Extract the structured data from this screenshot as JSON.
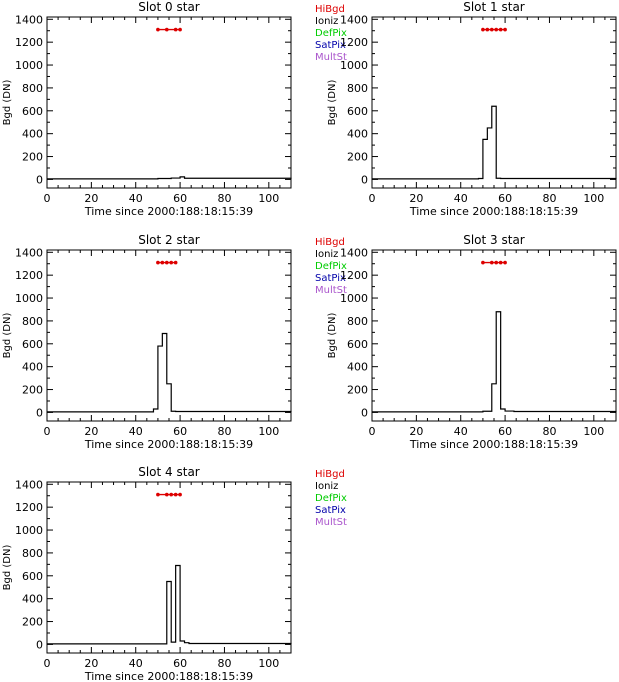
{
  "colors": {
    "HiBgd": "#dd0000",
    "Ioniz": "#000000",
    "DefPix": "#00cc00",
    "SatPix": "#0000aa",
    "MultSt": "#aa55cc",
    "axis": "#000000",
    "flag_line": "#dd0000"
  },
  "legend_items": [
    "HiBgd",
    "Ioniz",
    "DefPix",
    "SatPix",
    "MultSt"
  ],
  "chart_data": [
    {
      "type": "line",
      "title": "Slot 0 star",
      "xlabel": "Time since 2000:188:18:15:39",
      "ylabel": "Bgd (DN)",
      "xlim": [
        0,
        110
      ],
      "ylim": [
        -75,
        1420
      ],
      "xticks": [
        "0",
        "20",
        "40",
        "60",
        "80",
        "100"
      ],
      "yticks": [
        "0",
        "200",
        "400",
        "600",
        "800",
        "1000",
        "1200",
        "1400"
      ],
      "legend": [
        "HiBgd",
        "Ioniz",
        "DefPix",
        "SatPix",
        "MultSt"
      ],
      "series": [
        {
          "x": [
            0,
            50,
            56,
            60,
            62,
            110
          ],
          "y": [
            5,
            8,
            12,
            22,
            10,
            5
          ]
        }
      ],
      "flags": {
        "label": "HiBgd",
        "y": 1310,
        "x": [
          50,
          54,
          58,
          60
        ]
      }
    },
    {
      "type": "line",
      "title": "Slot 1 star",
      "xlabel": "Time since 2000:188:18:15:39",
      "ylabel": "Bgd (DN)",
      "xlim": [
        0,
        110
      ],
      "ylim": [
        -75,
        1420
      ],
      "xticks": [
        "0",
        "20",
        "40",
        "60",
        "80",
        "100"
      ],
      "yticks": [
        "0",
        "200",
        "400",
        "600",
        "800",
        "1000",
        "1200",
        "1400"
      ],
      "legend": [],
      "series": [
        {
          "x": [
            0,
            48,
            50,
            52,
            54,
            56,
            58,
            110
          ],
          "y": [
            5,
            8,
            350,
            450,
            640,
            10,
            8,
            5
          ]
        }
      ],
      "flags": {
        "label": "HiBgd",
        "y": 1310,
        "x": [
          50,
          52,
          54,
          56,
          58,
          60
        ]
      }
    },
    {
      "type": "line",
      "title": "Slot 2 star",
      "xlabel": "Time since 2000:188:18:15:39",
      "ylabel": "Bgd (DN)",
      "xlim": [
        0,
        110
      ],
      "ylim": [
        -75,
        1420
      ],
      "xticks": [
        "0",
        "20",
        "40",
        "60",
        "80",
        "100"
      ],
      "yticks": [
        "0",
        "200",
        "400",
        "600",
        "800",
        "1000",
        "1200",
        "1400"
      ],
      "legend": [
        "HiBgd",
        "Ioniz",
        "DefPix",
        "SatPix",
        "MultSt"
      ],
      "series": [
        {
          "x": [
            0,
            48,
            50,
            52,
            54,
            56,
            58,
            110
          ],
          "y": [
            5,
            30,
            580,
            690,
            250,
            10,
            8,
            5
          ]
        }
      ],
      "flags": {
        "label": "HiBgd",
        "y": 1310,
        "x": [
          50,
          52,
          54,
          56,
          58
        ]
      }
    },
    {
      "type": "line",
      "title": "Slot 3 star",
      "xlabel": "Time since 2000:188:18:15:39",
      "ylabel": "Bgd (DN)",
      "xlim": [
        0,
        110
      ],
      "ylim": [
        -75,
        1420
      ],
      "xticks": [
        "0",
        "20",
        "40",
        "60",
        "80",
        "100"
      ],
      "yticks": [
        "0",
        "200",
        "400",
        "600",
        "800",
        "1000",
        "1200",
        "1400"
      ],
      "legend": [],
      "series": [
        {
          "x": [
            0,
            50,
            54,
            56,
            58,
            60,
            64,
            110
          ],
          "y": [
            5,
            10,
            250,
            880,
            30,
            12,
            8,
            5
          ]
        }
      ],
      "flags": {
        "label": "HiBgd",
        "y": 1310,
        "x": [
          50,
          54,
          56,
          58,
          60
        ]
      }
    },
    {
      "type": "line",
      "title": "Slot 4 star",
      "xlabel": "Time since 2000:188:18:15:39",
      "ylabel": "Bgd (DN)",
      "xlim": [
        0,
        110
      ],
      "ylim": [
        -75,
        1420
      ],
      "xticks": [
        "0",
        "20",
        "40",
        "60",
        "80",
        "100"
      ],
      "yticks": [
        "0",
        "200",
        "400",
        "600",
        "800",
        "1000",
        "1200",
        "1400"
      ],
      "legend": [
        "HiBgd",
        "Ioniz",
        "DefPix",
        "SatPix",
        "MultSt"
      ],
      "series": [
        {
          "x": [
            0,
            54,
            56,
            58,
            60,
            62,
            64,
            110
          ],
          "y": [
            5,
            550,
            20,
            690,
            30,
            15,
            8,
            5
          ]
        }
      ],
      "flags": {
        "label": "HiBgd",
        "y": 1310,
        "x": [
          50,
          54,
          56,
          58,
          60
        ]
      }
    }
  ]
}
